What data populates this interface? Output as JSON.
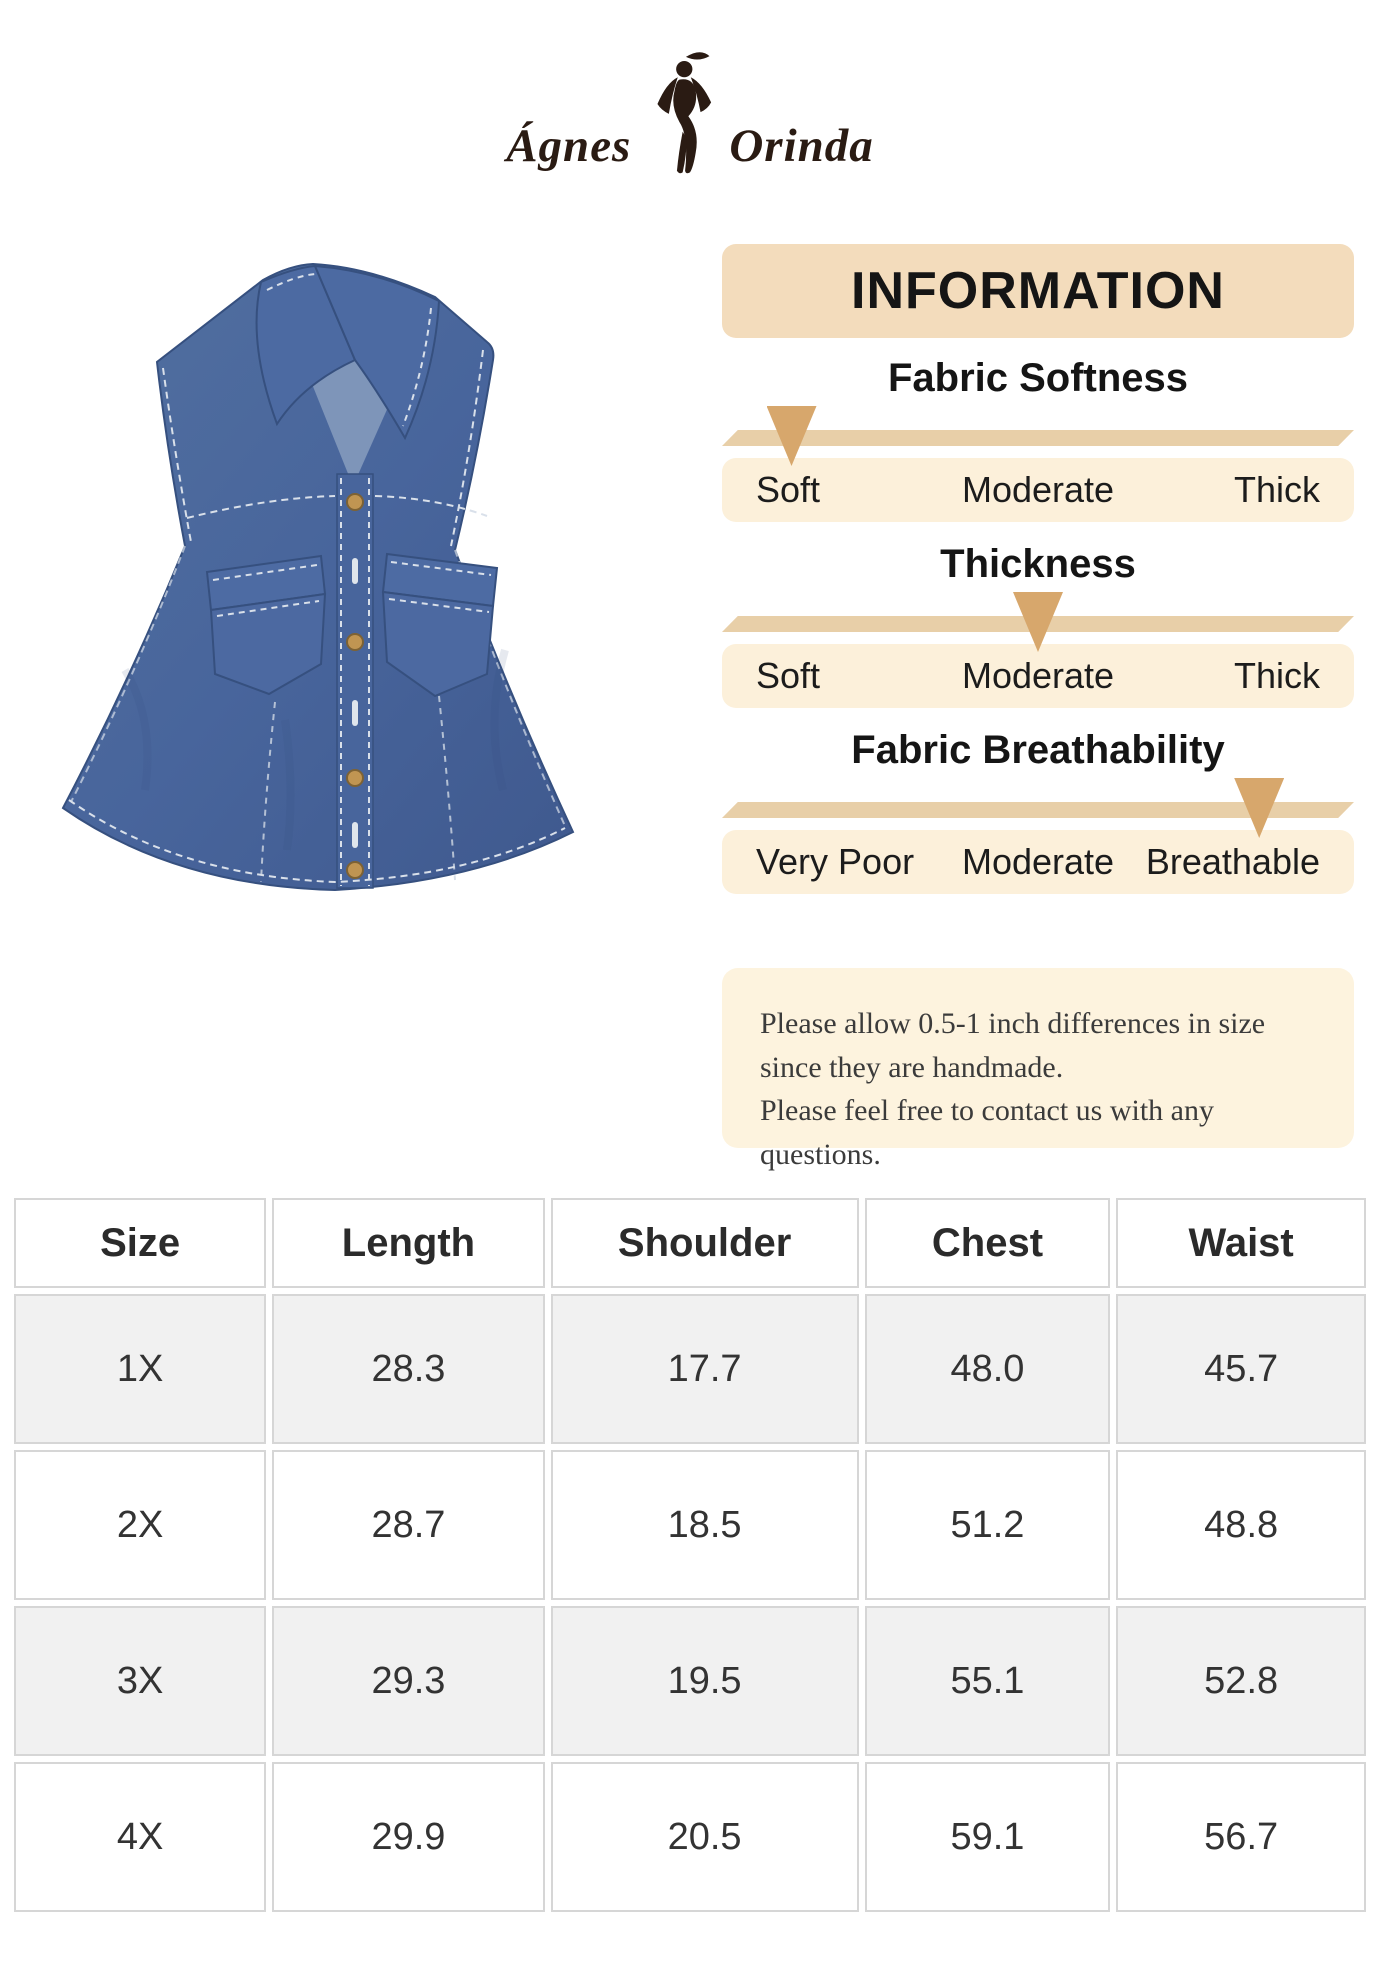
{
  "brand": {
    "name_first": "Ágnes",
    "name_second": "Orinda"
  },
  "info_panel": {
    "title": "INFORMATION",
    "scales": [
      {
        "title": "Fabric Softness",
        "labels": [
          "Soft",
          "Moderate",
          "Thick"
        ],
        "indicator_percent": 11
      },
      {
        "title": "Thickness",
        "labels": [
          "Soft",
          "Moderate",
          "Thick"
        ],
        "indicator_percent": 50
      },
      {
        "title": "Fabric Breathability",
        "labels": [
          "Very Poor",
          "Moderate",
          "Breathable"
        ],
        "indicator_percent": 85
      }
    ],
    "note_lines": [
      "Please allow 0.5-1 inch differences in size since they are handmade.",
      "Please feel free to contact us with any questions."
    ]
  },
  "size_table": {
    "headers": [
      "Size",
      "Length",
      "Shoulder",
      "Chest",
      "Waist"
    ],
    "rows": [
      [
        "1X",
        "28.3",
        "17.7",
        "48.0",
        "45.7"
      ],
      [
        "2X",
        "28.7",
        "18.5",
        "51.2",
        "48.8"
      ],
      [
        "3X",
        "29.3",
        "19.5",
        "55.1",
        "52.8"
      ],
      [
        "4X",
        "29.9",
        "20.5",
        "59.1",
        "56.7"
      ]
    ]
  },
  "colors": {
    "header_bg": "#f3dcbc",
    "bar": "#e8cfa8",
    "arrow": "#d7a76c",
    "label_row_bg": "#fcf0da",
    "note_bg": "#fdf3de",
    "logo_ink": "#2a1b13",
    "denim": "#4a68a0",
    "table_stripe": "#f1f1f1"
  }
}
